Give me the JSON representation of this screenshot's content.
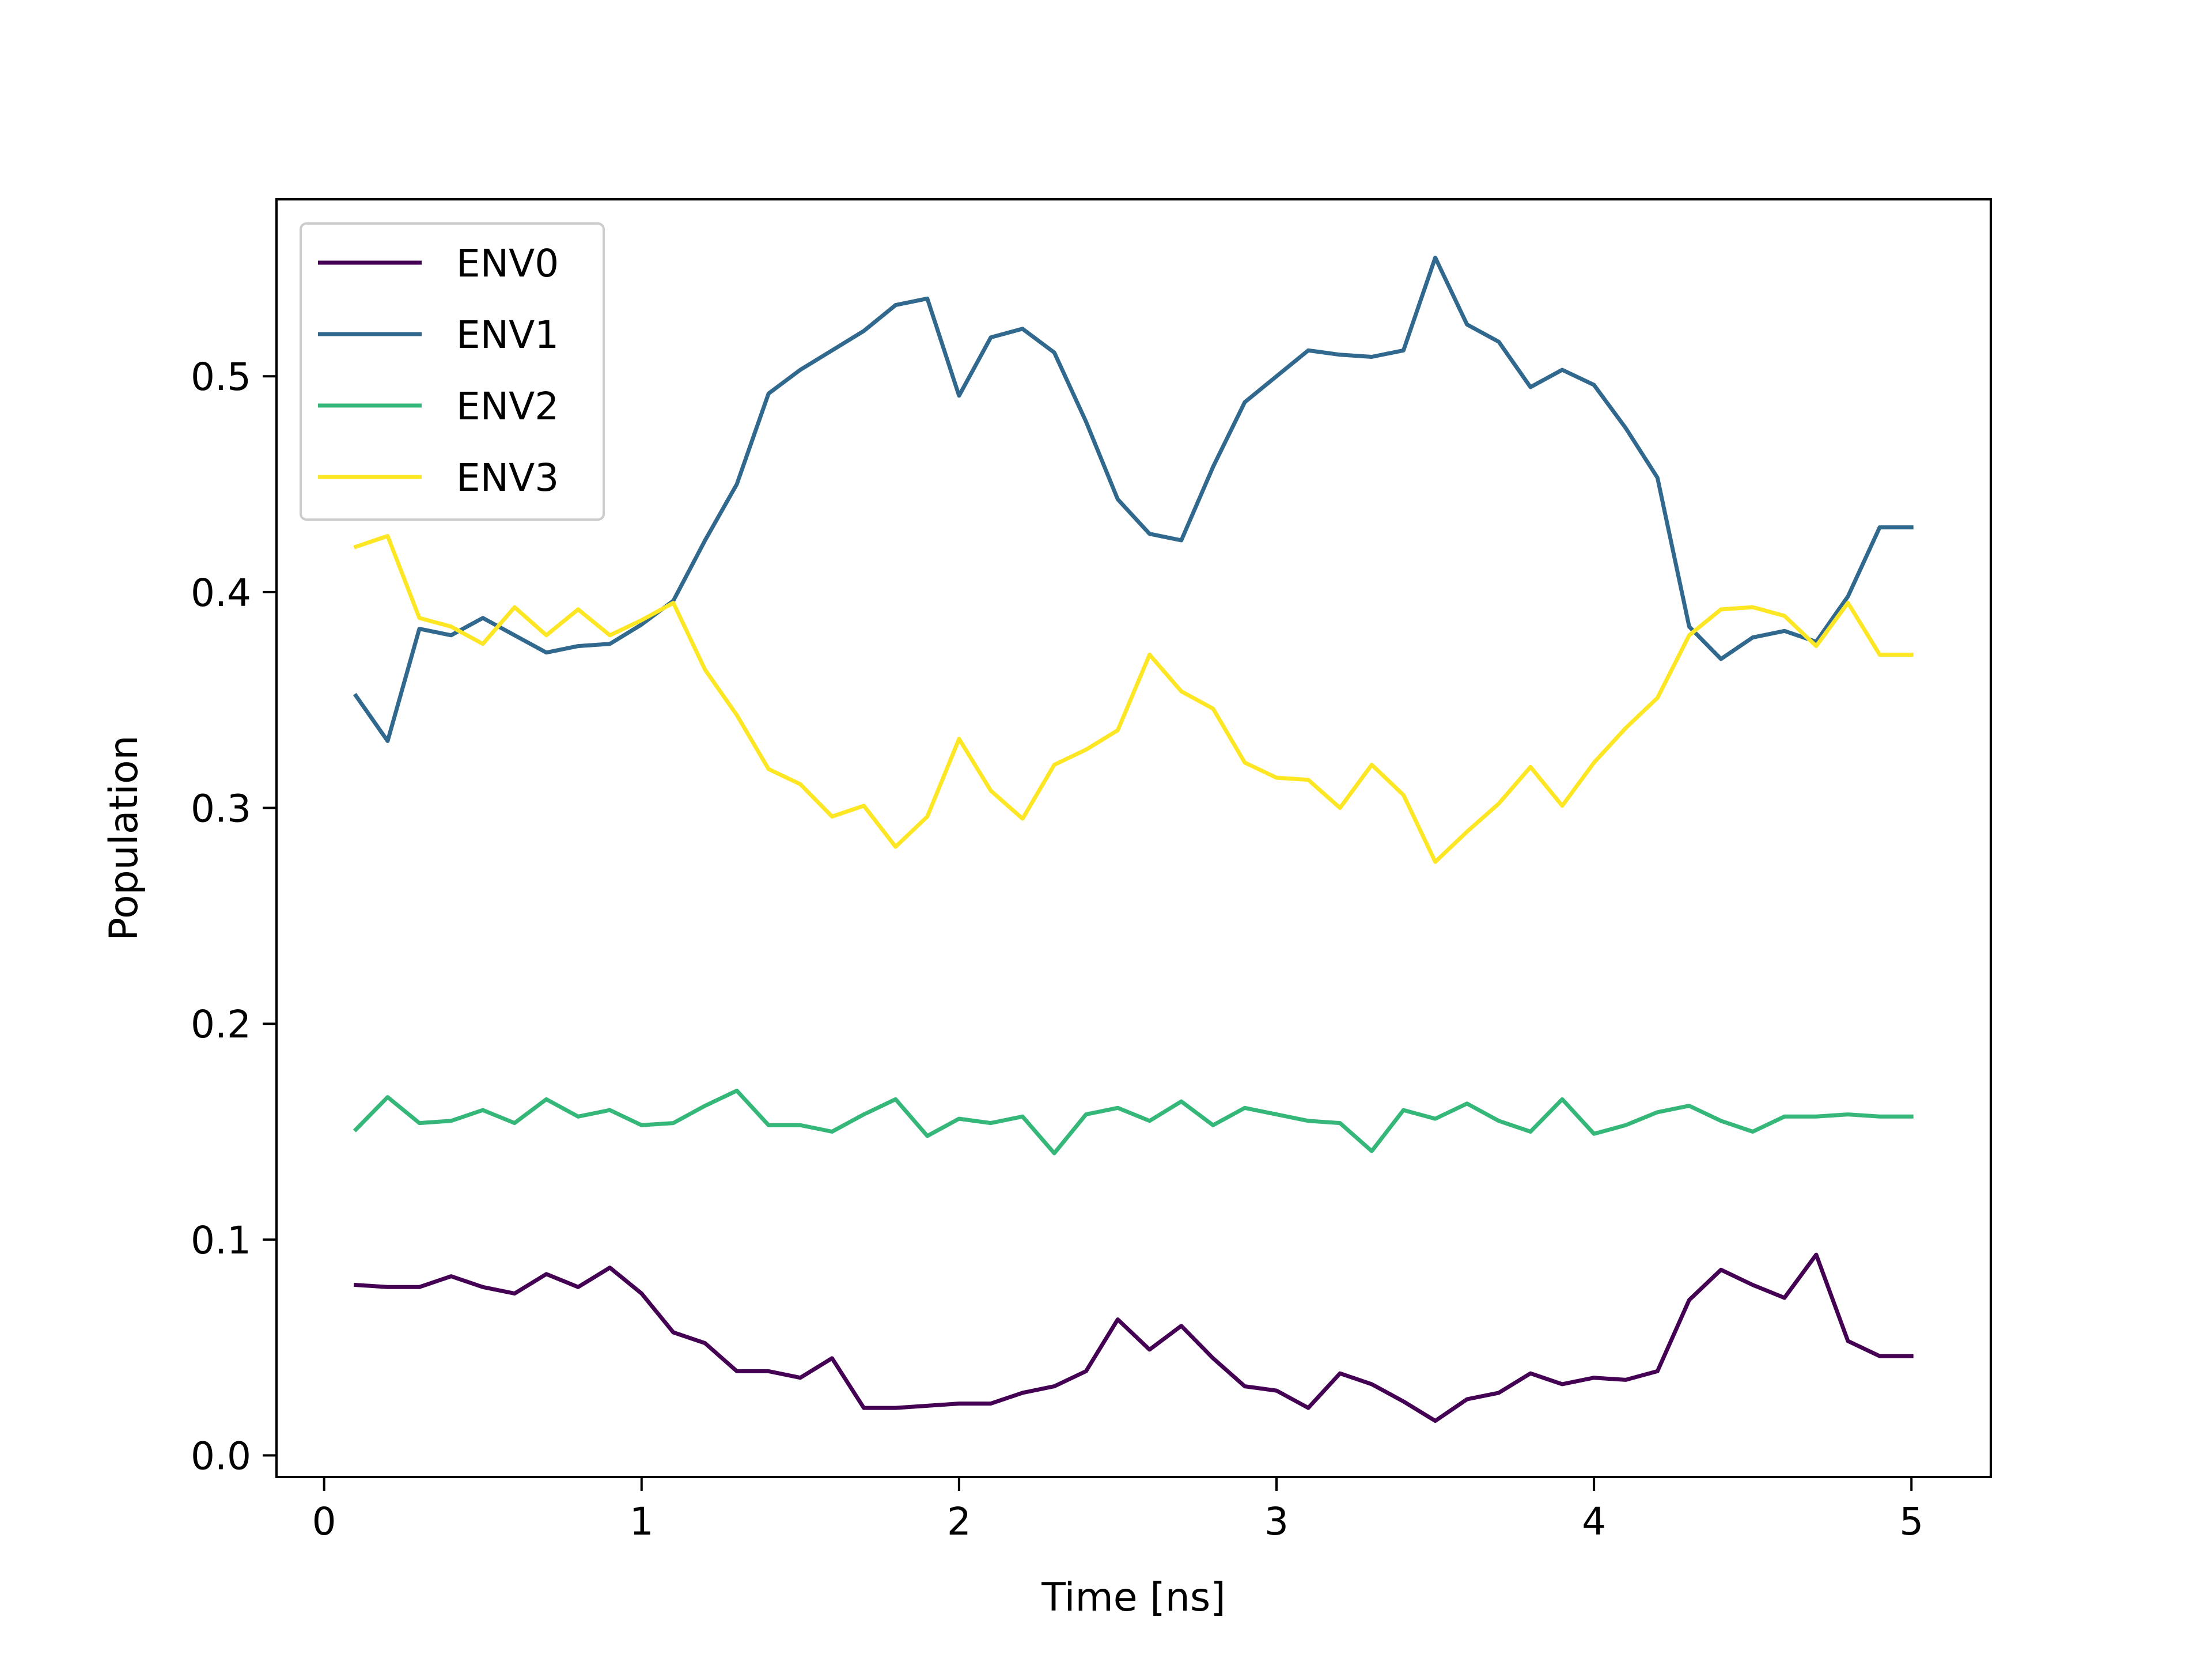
{
  "chart_data": {
    "type": "line",
    "xlabel": "Time [ns]",
    "ylabel": "Population",
    "xlim": [
      -0.15,
      5.25
    ],
    "ylim": [
      -0.01,
      0.582
    ],
    "xticks": [
      0,
      1,
      2,
      3,
      4,
      5
    ],
    "xtick_labels": [
      "0",
      "1",
      "2",
      "3",
      "4",
      "5"
    ],
    "yticks": [
      0.0,
      0.1,
      0.2,
      0.3,
      0.4,
      0.5
    ],
    "ytick_labels": [
      "0.0",
      "0.1",
      "0.2",
      "0.3",
      "0.4",
      "0.5"
    ],
    "grid": false,
    "legend_position": "top-left",
    "x": [
      0.1,
      0.2,
      0.3,
      0.4,
      0.5,
      0.6,
      0.7,
      0.8,
      0.9,
      1.0,
      1.1,
      1.2,
      1.3,
      1.4,
      1.5,
      1.6,
      1.7,
      1.8,
      1.9,
      2.0,
      2.1,
      2.2,
      2.3,
      2.4,
      2.5,
      2.6,
      2.7,
      2.8,
      2.9,
      3.0,
      3.1,
      3.2,
      3.3,
      3.4,
      3.5,
      3.6,
      3.7,
      3.8,
      3.9,
      4.0,
      4.1,
      4.2,
      4.3,
      4.4,
      4.5,
      4.6,
      4.7,
      4.8,
      4.9,
      5.0
    ],
    "series": [
      {
        "name": "ENV0",
        "color": "#440154",
        "values": [
          0.079,
          0.078,
          0.078,
          0.083,
          0.078,
          0.075,
          0.084,
          0.078,
          0.087,
          0.075,
          0.057,
          0.052,
          0.039,
          0.039,
          0.036,
          0.045,
          0.022,
          0.022,
          0.023,
          0.024,
          0.024,
          0.029,
          0.032,
          0.039,
          0.063,
          0.049,
          0.06,
          0.045,
          0.032,
          0.03,
          0.022,
          0.038,
          0.033,
          0.025,
          0.016,
          0.026,
          0.029,
          0.038,
          0.033,
          0.036,
          0.035,
          0.039,
          0.072,
          0.086,
          0.079,
          0.073,
          0.093,
          0.053,
          0.046,
          0.046
        ]
      },
      {
        "name": "ENV1",
        "color": "#31688e",
        "values": [
          0.352,
          0.331,
          0.383,
          0.38,
          0.388,
          0.38,
          0.372,
          0.375,
          0.376,
          0.385,
          0.396,
          0.424,
          0.45,
          0.492,
          0.503,
          0.512,
          0.521,
          0.533,
          0.536,
          0.491,
          0.518,
          0.522,
          0.511,
          0.479,
          0.443,
          0.427,
          0.424,
          0.458,
          0.488,
          0.5,
          0.512,
          0.51,
          0.509,
          0.512,
          0.555,
          0.524,
          0.516,
          0.495,
          0.503,
          0.496,
          0.476,
          0.453,
          0.384,
          0.369,
          0.379,
          0.382,
          0.377,
          0.398,
          0.43,
          0.43
        ]
      },
      {
        "name": "ENV2",
        "color": "#35b779",
        "values": [
          0.151,
          0.166,
          0.154,
          0.155,
          0.16,
          0.154,
          0.165,
          0.157,
          0.16,
          0.153,
          0.154,
          0.162,
          0.169,
          0.153,
          0.153,
          0.15,
          0.158,
          0.165,
          0.148,
          0.156,
          0.154,
          0.157,
          0.14,
          0.158,
          0.161,
          0.155,
          0.164,
          0.153,
          0.161,
          0.158,
          0.155,
          0.154,
          0.141,
          0.16,
          0.156,
          0.163,
          0.155,
          0.15,
          0.165,
          0.149,
          0.153,
          0.159,
          0.162,
          0.155,
          0.15,
          0.157,
          0.157,
          0.158,
          0.157,
          0.157
        ]
      },
      {
        "name": "ENV3",
        "color": "#fde725",
        "values": [
          0.421,
          0.426,
          0.388,
          0.384,
          0.376,
          0.393,
          0.38,
          0.392,
          0.38,
          0.387,
          0.395,
          0.364,
          0.343,
          0.318,
          0.311,
          0.296,
          0.301,
          0.282,
          0.296,
          0.332,
          0.308,
          0.295,
          0.32,
          0.327,
          0.336,
          0.371,
          0.354,
          0.346,
          0.321,
          0.314,
          0.313,
          0.3,
          0.32,
          0.306,
          0.275,
          0.289,
          0.302,
          0.319,
          0.301,
          0.321,
          0.337,
          0.351,
          0.38,
          0.392,
          0.393,
          0.389,
          0.375,
          0.395,
          0.371,
          0.371
        ]
      }
    ]
  }
}
